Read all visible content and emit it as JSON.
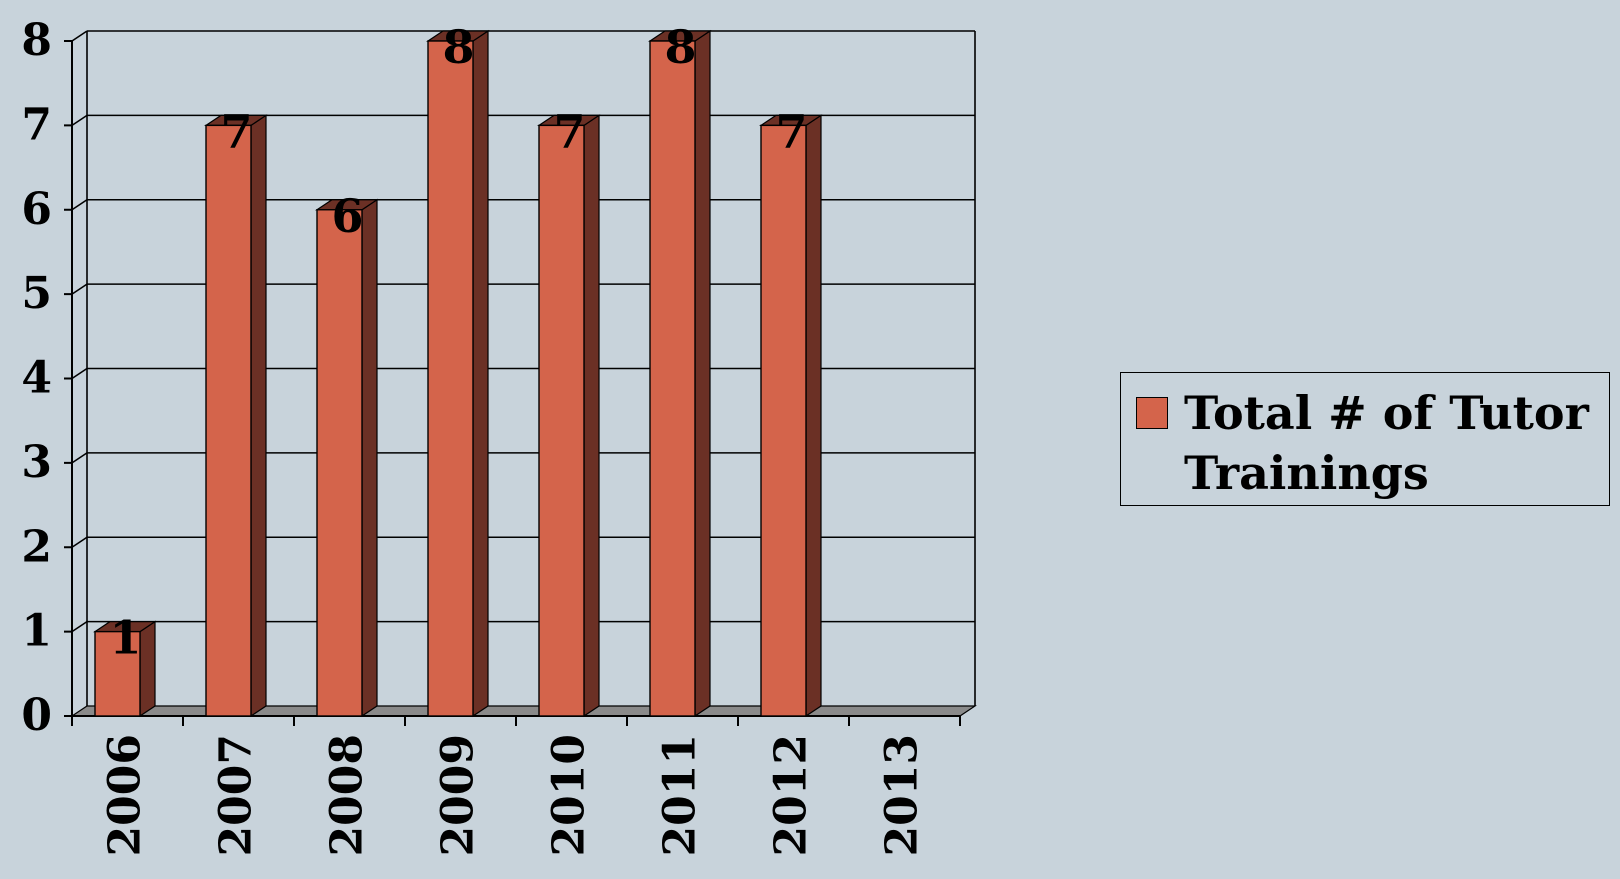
{
  "chart_data": {
    "type": "bar",
    "categories": [
      "2006",
      "2007",
      "2008",
      "2009",
      "2010",
      "2011",
      "2012",
      "2013"
    ],
    "series": [
      {
        "name": "Total # of Tutor Trainings",
        "values": [
          1,
          7,
          6,
          8,
          7,
          8,
          7,
          null
        ],
        "data_labels": [
          "1",
          "7",
          "6",
          "8",
          "7",
          "8",
          "7",
          ""
        ],
        "color": "#d4644b",
        "side_color": "#6b3025"
      }
    ],
    "yticks": [
      "0",
      "1",
      "2",
      "3",
      "4",
      "5",
      "6",
      "7",
      "8"
    ],
    "ylim": [
      0,
      8
    ],
    "grid": true,
    "legend_placement": "right",
    "background_color": "#c8d3db",
    "floor_color": "#8a8a8a"
  }
}
